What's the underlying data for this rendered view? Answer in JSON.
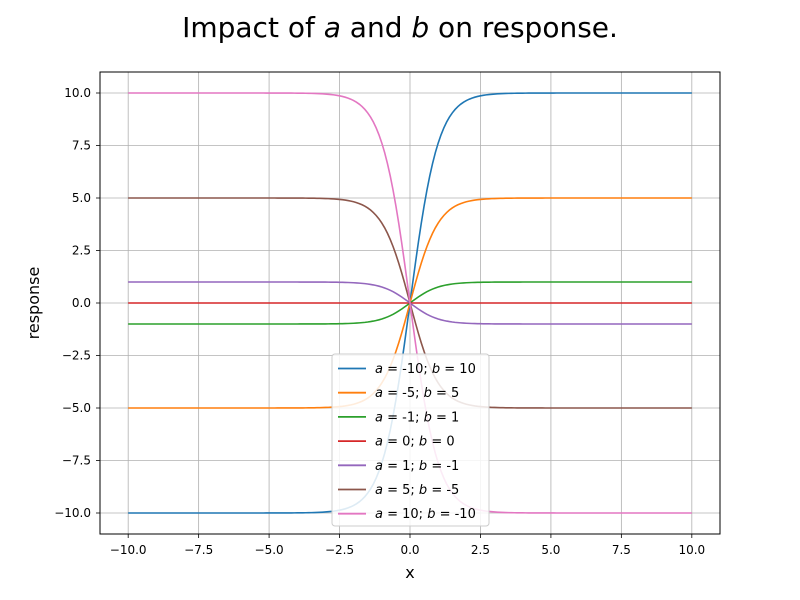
{
  "chart_data": {
    "type": "line",
    "title": {
      "prefix": "Impact of ",
      "var1": "a",
      "middle": " and ",
      "var2": "b",
      "suffix": " on response."
    },
    "xlabel": "x",
    "ylabel": "response",
    "xlim": [
      -11,
      11
    ],
    "ylim": [
      -11,
      11
    ],
    "xticks": [
      -10,
      -7.5,
      -5,
      -2.5,
      0,
      2.5,
      5,
      7.5,
      10
    ],
    "xtick_labels": [
      "−10.0",
      "−7.5",
      "−5.0",
      "−2.5",
      "0.0",
      "2.5",
      "5.0",
      "7.5",
      "10.0"
    ],
    "yticks": [
      -10,
      -7.5,
      -5,
      -2.5,
      0,
      2.5,
      5,
      7.5,
      10
    ],
    "ytick_labels": [
      "−10.0",
      "−7.5",
      "−5.0",
      "−2.5",
      "0.0",
      "2.5",
      "5.0",
      "7.5",
      "10.0"
    ],
    "grid": true,
    "legend_position": "lower-center",
    "x_range": [
      -10,
      10
    ],
    "x_samples": 201,
    "function": "response = a + (b - a) / (1 + exp(-2x))",
    "series": [
      {
        "a": -10,
        "b": 10,
        "a_text": "-10",
        "b_text": "10",
        "color": "#1f77b4"
      },
      {
        "a": -5,
        "b": 5,
        "a_text": "-5",
        "b_text": "5",
        "color": "#ff7f0e"
      },
      {
        "a": -1,
        "b": 1,
        "a_text": "-1",
        "b_text": "1",
        "color": "#2ca02c"
      },
      {
        "a": 0,
        "b": 0,
        "a_text": "0",
        "b_text": "0",
        "color": "#d62728"
      },
      {
        "a": 1,
        "b": -1,
        "a_text": "1",
        "b_text": "-1",
        "color": "#9467bd"
      },
      {
        "a": 5,
        "b": -5,
        "a_text": "5",
        "b_text": "-5",
        "color": "#8c564b"
      },
      {
        "a": 10,
        "b": -10,
        "a_text": "10",
        "b_text": "-10",
        "color": "#e377c2"
      }
    ]
  }
}
